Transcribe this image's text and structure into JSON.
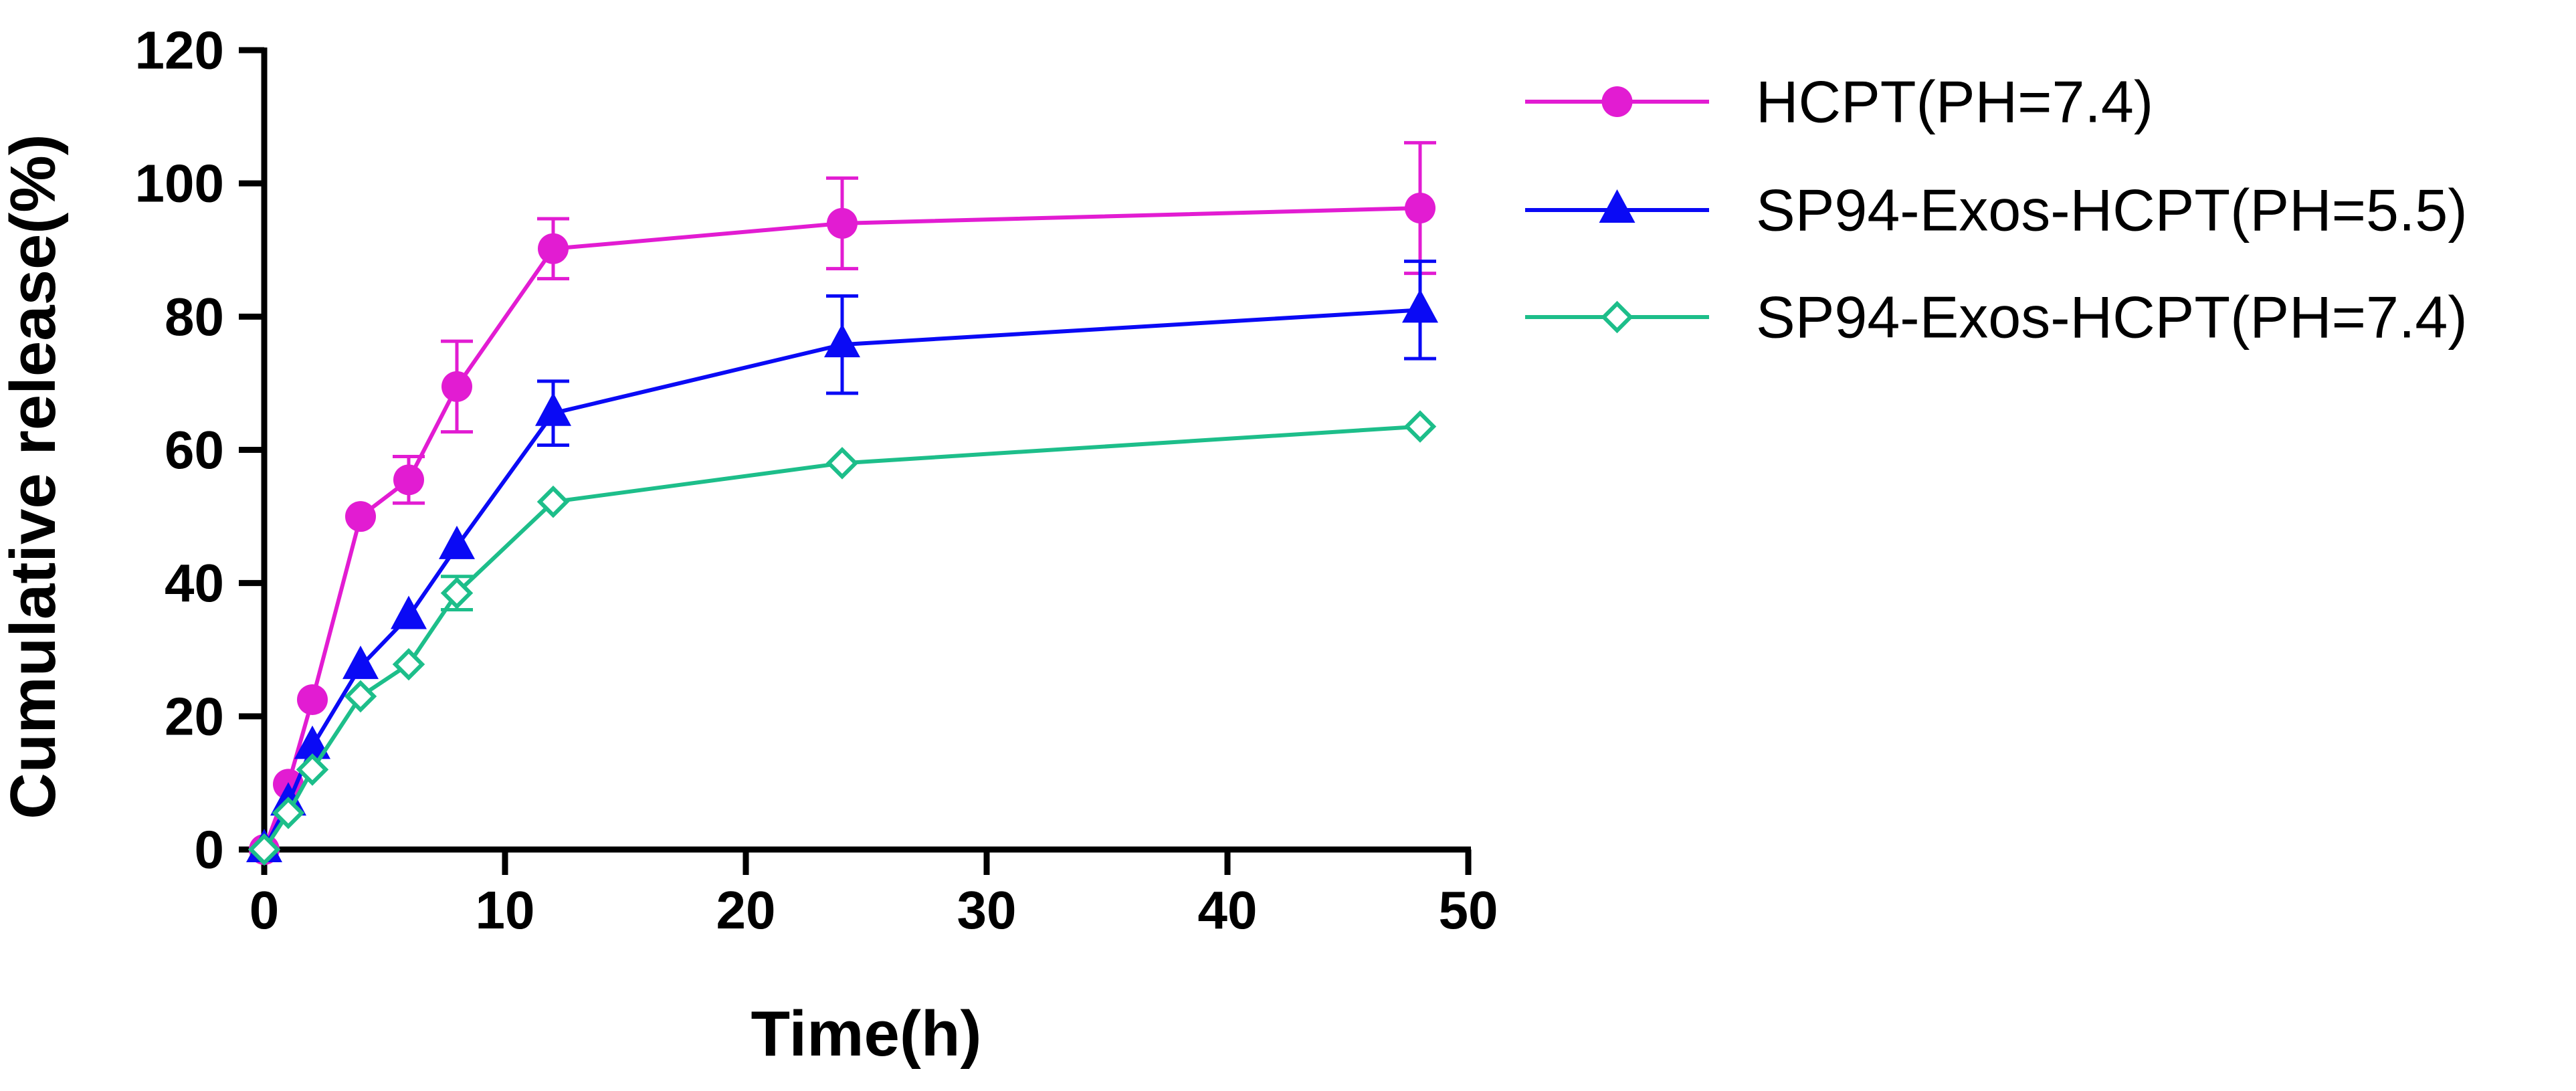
{
  "chart_data": {
    "type": "line",
    "title": "",
    "xlabel": "Time(h)",
    "ylabel": "Cumulative release(%)",
    "xlim": [
      0,
      50
    ],
    "ylim": [
      0,
      120
    ],
    "xticks": [
      0,
      10,
      20,
      30,
      40,
      50
    ],
    "yticks": [
      0,
      20,
      40,
      60,
      80,
      100,
      120
    ],
    "grid": false,
    "legend_position": "top-right",
    "series": [
      {
        "name": "HCPT(PH=7.4)",
        "color": "#E21CD2",
        "marker": "circle",
        "x": [
          0,
          1,
          2,
          4,
          6,
          8,
          12,
          24,
          48
        ],
        "y": [
          0,
          9.8,
          22.5,
          50,
          55.5,
          69.5,
          90.2,
          94,
          96.3
        ],
        "err": [
          0,
          0,
          0,
          0,
          3.5,
          6.8,
          4.5,
          6.8,
          9.8
        ]
      },
      {
        "name": "SP94-Exos-HCPT(PH=5.5)",
        "color": "#0A0AF5",
        "marker": "triangle",
        "x": [
          0,
          1,
          2,
          4,
          6,
          8,
          12,
          24,
          48
        ],
        "y": [
          0,
          7,
          15.5,
          27.5,
          35,
          45.5,
          65.5,
          75.8,
          81
        ],
        "err": [
          0,
          0,
          0,
          0,
          0,
          0,
          4.8,
          7.3,
          7.3
        ]
      },
      {
        "name": "SP94-Exos-HCPT(PH=7.4)",
        "color": "#1DBE8A",
        "marker": "diamond",
        "x": [
          0,
          1,
          2,
          4,
          6,
          8,
          12,
          24,
          48
        ],
        "y": [
          0,
          5.5,
          12,
          23,
          27.8,
          38.5,
          52.2,
          58,
          63.5
        ],
        "err": [
          0,
          0,
          0,
          0,
          0,
          2.5,
          0,
          0,
          0
        ]
      }
    ]
  }
}
